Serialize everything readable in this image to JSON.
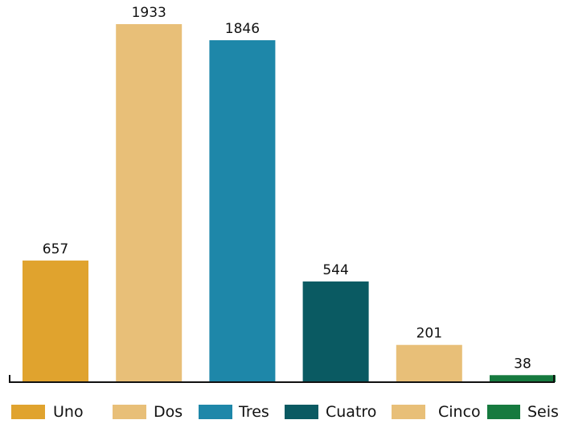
{
  "chart_data": {
    "type": "bar",
    "categories": [
      "Uno",
      "Dos",
      "Tres",
      "Cuatro",
      "Cinco",
      "Seis"
    ],
    "values": [
      657,
      1933,
      1846,
      544,
      201,
      38
    ],
    "colors": [
      "#e0a32e",
      "#e8bf78",
      "#1e87a9",
      "#0a5a62",
      "#e8bf78",
      "#167a3f"
    ],
    "ylim": [
      0,
      1933
    ],
    "grid": false,
    "legend_position": "bottom",
    "title": "",
    "xlabel": "",
    "ylabel": ""
  }
}
